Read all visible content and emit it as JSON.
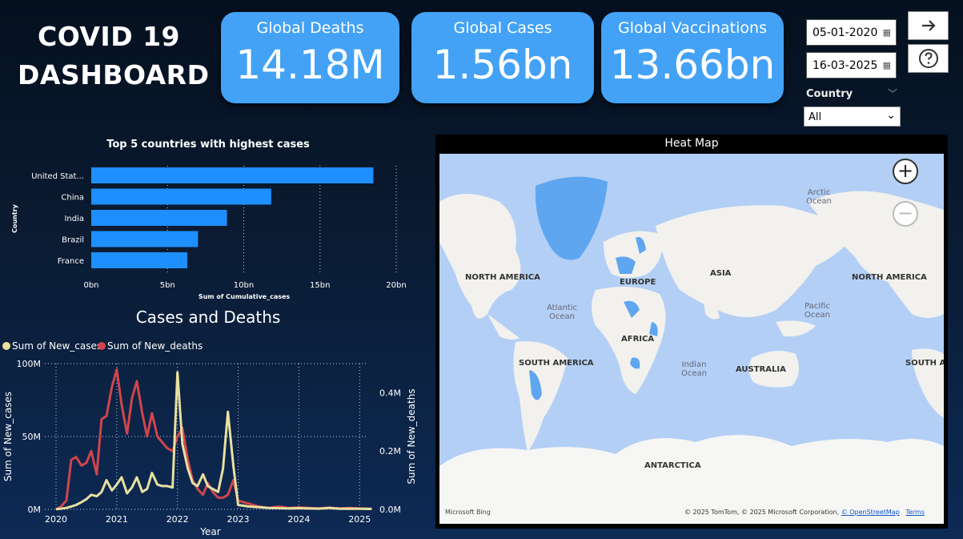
{
  "dashboard": {
    "title_line1": "COVID 19",
    "title_line2": "DASHBOARD"
  },
  "kpis": [
    {
      "label": "Global Deaths",
      "value": "14.18M"
    },
    {
      "label": "Global Cases",
      "value": "1.56bn"
    },
    {
      "label": "Global Vaccinations",
      "value": "13.66bn"
    }
  ],
  "filters": {
    "start_date": "05-01-2020",
    "end_date": "16-03-2025",
    "country_label": "Country",
    "country_value": "All"
  },
  "icons": {
    "next": "arrow-right-icon",
    "help": "question-icon",
    "calendar": "calendar-icon"
  },
  "colors": {
    "kpi_bg": "#43a2f5",
    "bar": "#1e8fff",
    "new_cases": "#e8e0a0",
    "new_deaths": "#d0454c"
  },
  "map": {
    "title": "Heat Map",
    "labels": [
      "NORTH AMERICA",
      "EUROPE",
      "ASIA",
      "NORTH AMERICA",
      "AFRICA",
      "SOUTH AMERICA",
      "AUSTRALIA",
      "SOUTH A",
      "ANTARCTICA"
    ],
    "oceans": [
      "Arctic\nOcean",
      "Atlantic\nOcean",
      "Pacific\nOcean",
      "Indian\nOcean"
    ],
    "bing": "Microsoft Bing",
    "attribution": "© 2025 TomTom, © 2025 Microsoft Corporation,",
    "osm": "© OpenStreetMap",
    "terms": "Terms"
  },
  "chart_data": [
    {
      "type": "bar",
      "title": "Top 5 countries with highest cases",
      "xlabel": "Sum of Cumulative_cases",
      "ylabel": "Country",
      "categories": [
        "United Stat...",
        "China",
        "India",
        "Brazil",
        "France"
      ],
      "values": [
        18.5,
        11.8,
        8.9,
        7.0,
        6.3
      ],
      "xticks": [
        "0bn",
        "5bn",
        "10bn",
        "15bn",
        "20bn"
      ],
      "xlim": [
        0,
        20
      ],
      "orientation": "horizontal"
    },
    {
      "type": "line",
      "title": "Cases and Deaths",
      "xlabel": "Year",
      "ylabel": "Sum of New_cases",
      "y2label": "Sum of New_deaths",
      "xticks": [
        "2020",
        "2021",
        "2022",
        "2023",
        "2024",
        "2025"
      ],
      "yticks": [
        "0M",
        "50M",
        "100M"
      ],
      "y2ticks": [
        "0.0M",
        "0.2M",
        "0.4M"
      ],
      "x": [
        2020.0,
        2020.08,
        2020.17,
        2020.25,
        2020.33,
        2020.42,
        2020.5,
        2020.58,
        2020.67,
        2020.75,
        2020.83,
        2020.92,
        2021.0,
        2021.08,
        2021.17,
        2021.25,
        2021.33,
        2021.42,
        2021.5,
        2021.58,
        2021.67,
        2021.75,
        2021.83,
        2021.92,
        2022.0,
        2022.08,
        2022.17,
        2022.25,
        2022.33,
        2022.42,
        2022.5,
        2022.58,
        2022.67,
        2022.75,
        2022.83,
        2022.92,
        2023.0,
        2023.17,
        2023.33,
        2023.5,
        2023.67,
        2023.83,
        2024.0,
        2024.17,
        2024.33,
        2024.5,
        2024.67,
        2024.83,
        2025.0,
        2025.2
      ],
      "series": [
        {
          "name": "Sum of New_cases",
          "values": [
            0.1,
            0.5,
            1,
            2,
            3,
            5,
            7,
            10,
            9,
            12,
            20,
            13,
            17,
            22,
            11,
            15,
            22,
            12,
            14,
            25,
            17,
            16,
            16,
            15,
            94,
            45,
            28,
            18,
            16,
            24,
            16,
            14,
            12,
            28,
            67,
            30,
            3,
            2,
            1.5,
            1,
            0.8,
            0.6,
            0.8,
            0.6,
            0.5,
            1.0,
            0.4,
            0.5,
            0.4,
            0.3
          ],
          "axis": "left"
        },
        {
          "name": "Sum of New_deaths",
          "values": [
            0.0,
            0.01,
            0.03,
            0.17,
            0.18,
            0.15,
            0.16,
            0.2,
            0.12,
            0.31,
            0.32,
            0.42,
            0.48,
            0.36,
            0.26,
            0.38,
            0.44,
            0.33,
            0.25,
            0.33,
            0.25,
            0.23,
            0.21,
            0.2,
            0.25,
            0.28,
            0.17,
            0.1,
            0.07,
            0.05,
            0.09,
            0.06,
            0.04,
            0.04,
            0.05,
            0.1,
            0.03,
            0.02,
            0.01,
            0.005,
            0.01,
            0.005,
            0.007,
            0.005,
            0.003,
            0.006,
            0.003,
            0.005,
            0.003,
            0.002
          ],
          "axis": "right"
        }
      ],
      "ylim": [
        0,
        100
      ],
      "y2lim": [
        0,
        0.5
      ],
      "legend": "top-left"
    }
  ]
}
